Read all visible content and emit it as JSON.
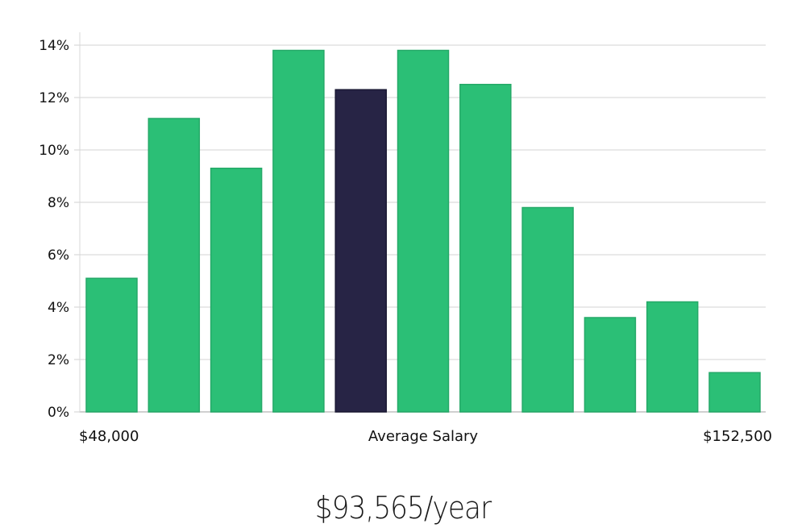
{
  "chart_data": {
    "type": "bar",
    "categories": [
      "1",
      "2",
      "3",
      "4",
      "5",
      "6",
      "7",
      "8",
      "9",
      "10",
      "11"
    ],
    "values": [
      5.1,
      11.2,
      9.3,
      13.8,
      12.3,
      13.8,
      12.5,
      7.8,
      3.6,
      4.2,
      1.5
    ],
    "highlight_index": 4,
    "ylim": [
      0,
      14
    ],
    "yticks": [
      0,
      2,
      4,
      6,
      8,
      10,
      12,
      14
    ],
    "ytick_format": "%",
    "grid": true,
    "x_labels": {
      "left": "$48,000",
      "center": "Average Salary",
      "right": "$152,500"
    },
    "colors": {
      "bar": "#2bbf76",
      "highlight": "#272445",
      "grid": "#e2e2e2"
    }
  },
  "average_salary": "$93,565/year"
}
